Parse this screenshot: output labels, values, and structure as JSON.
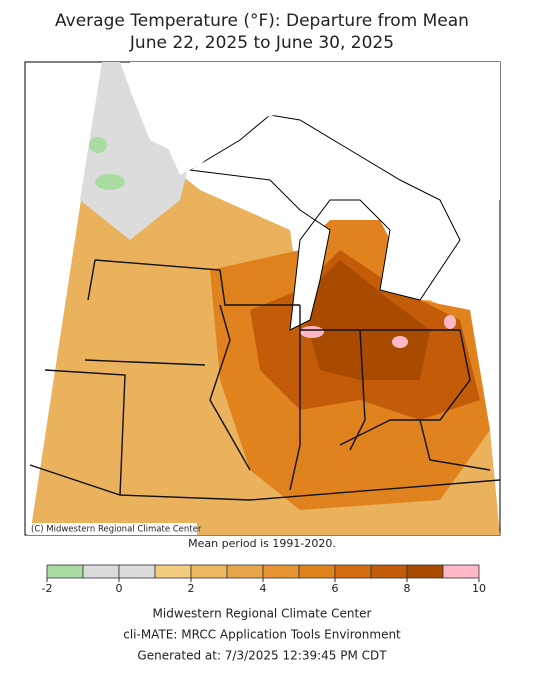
{
  "title": [
    "Average Temperature (°F): Departure from Mean",
    "June 22, 2025 to June 30, 2025"
  ],
  "copyright": "(C) Midwestern Regional Climate Center",
  "note": "Mean period is 1991-2020.",
  "legend": {
    "bins": [
      -2,
      -1,
      0,
      1,
      2,
      3,
      4,
      5,
      6,
      7,
      8,
      9,
      10
    ],
    "colors": [
      "#a8dca0",
      "#dcdcdc",
      "#dcdcdc",
      "#f2cc80",
      "#ecb862",
      "#e8a64a",
      "#e69434",
      "#e0821e",
      "#d46e10",
      "#c25c08",
      "#a84a00",
      "#ffb8c8"
    ],
    "ticks": [
      -2,
      0,
      2,
      4,
      6,
      8,
      10
    ]
  },
  "footer": [
    "Midwestern Regional Climate Center",
    "cli-MATE: MRCC Application Tools Environment",
    "Generated at: 7/3/2025 12:39:45 PM CDT"
  ]
}
